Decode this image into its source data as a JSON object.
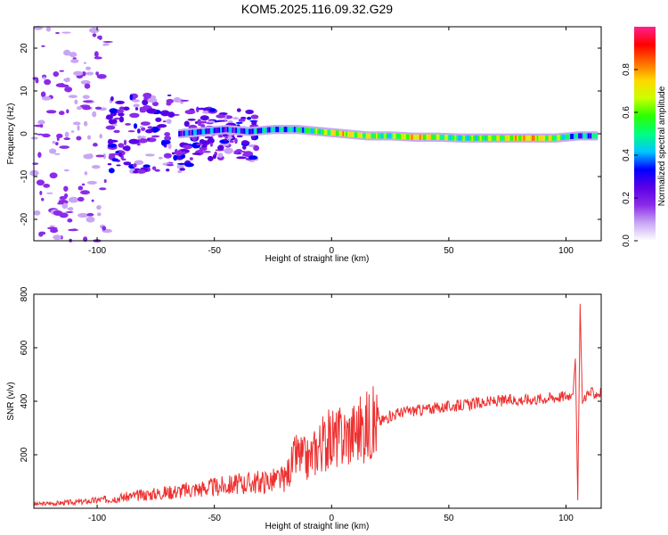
{
  "title": "KOM5.2025.116.09.32.G29",
  "chart_data": [
    {
      "type": "heatmap",
      "xlabel": "Height of straight line (km)",
      "ylabel": "Frequency (Hz)",
      "xlim": [
        -127,
        115
      ],
      "ylim": [
        -25,
        25
      ],
      "x_ticks": [
        -100,
        -50,
        0,
        50,
        100
      ],
      "y_ticks": [
        -20,
        -10,
        0,
        10,
        20
      ],
      "colorbar": {
        "label": "Normalized spectral amplitude",
        "range": [
          0,
          1
        ],
        "ticks": [
          0.0,
          0.2,
          0.4,
          0.6,
          0.8
        ],
        "colormap": [
          "#ffffff",
          "#c9a6f4",
          "#8b2be8",
          "#5a00e6",
          "#0000ff",
          "#00c8ff",
          "#00ff7f",
          "#2bff00",
          "#ccff00",
          "#ffd700",
          "#ff6a00",
          "#ff0000",
          "#ff2090"
        ]
      },
      "ridge": [
        {
          "x": -65,
          "freq": 0.0,
          "amp": 0.3
        },
        {
          "x": -55,
          "freq": 0.5,
          "amp": 0.35
        },
        {
          "x": -45,
          "freq": 1.0,
          "amp": 0.3
        },
        {
          "x": -35,
          "freq": 0.5,
          "amp": 0.35
        },
        {
          "x": -25,
          "freq": 1.0,
          "amp": 0.4
        },
        {
          "x": -15,
          "freq": 1.0,
          "amp": 0.45
        },
        {
          "x": -5,
          "freq": 0.5,
          "amp": 0.55
        },
        {
          "x": 5,
          "freq": 0.0,
          "amp": 0.7
        },
        {
          "x": 15,
          "freq": -0.5,
          "amp": 0.6
        },
        {
          "x": 25,
          "freq": -0.5,
          "amp": 0.5
        },
        {
          "x": 35,
          "freq": -0.8,
          "amp": 0.75
        },
        {
          "x": 45,
          "freq": -0.8,
          "amp": 0.6
        },
        {
          "x": 55,
          "freq": -1.0,
          "amp": 0.5
        },
        {
          "x": 65,
          "freq": -1.0,
          "amp": 0.55
        },
        {
          "x": 75,
          "freq": -1.0,
          "amp": 0.65
        },
        {
          "x": 85,
          "freq": -1.0,
          "amp": 0.75
        },
        {
          "x": 95,
          "freq": -1.0,
          "amp": 0.6
        },
        {
          "x": 105,
          "freq": -0.5,
          "amp": 0.4
        },
        {
          "x": 113,
          "freq": -0.5,
          "amp": 0.4
        }
      ]
    },
    {
      "type": "line",
      "xlabel": "Height of straight line (km)",
      "ylabel": "SNR (v/v)",
      "xlim": [
        -127,
        115
      ],
      "ylim": [
        0,
        800
      ],
      "x_ticks": [
        -100,
        -50,
        0,
        50,
        100
      ],
      "y_ticks": [
        200,
        400,
        600,
        800
      ],
      "color": "#ee3030",
      "series": [
        {
          "x": [
            -127,
            -115,
            -105,
            -100,
            -90,
            -80,
            -70,
            -60,
            -50,
            -40,
            -30,
            -20,
            -15,
            -10,
            -5,
            0,
            5,
            10,
            15,
            20,
            25,
            30,
            40,
            50,
            60,
            70,
            80,
            90,
            100,
            103,
            104,
            105,
            106,
            107,
            108,
            110,
            115
          ],
          "y": [
            15,
            20,
            25,
            30,
            40,
            50,
            60,
            70,
            80,
            90,
            100,
            110,
            200,
            180,
            240,
            260,
            270,
            290,
            310,
            320,
            345,
            360,
            370,
            380,
            390,
            400,
            405,
            410,
            420,
            430,
            560,
            30,
            760,
            390,
            420,
            430,
            430
          ]
        }
      ]
    }
  ]
}
